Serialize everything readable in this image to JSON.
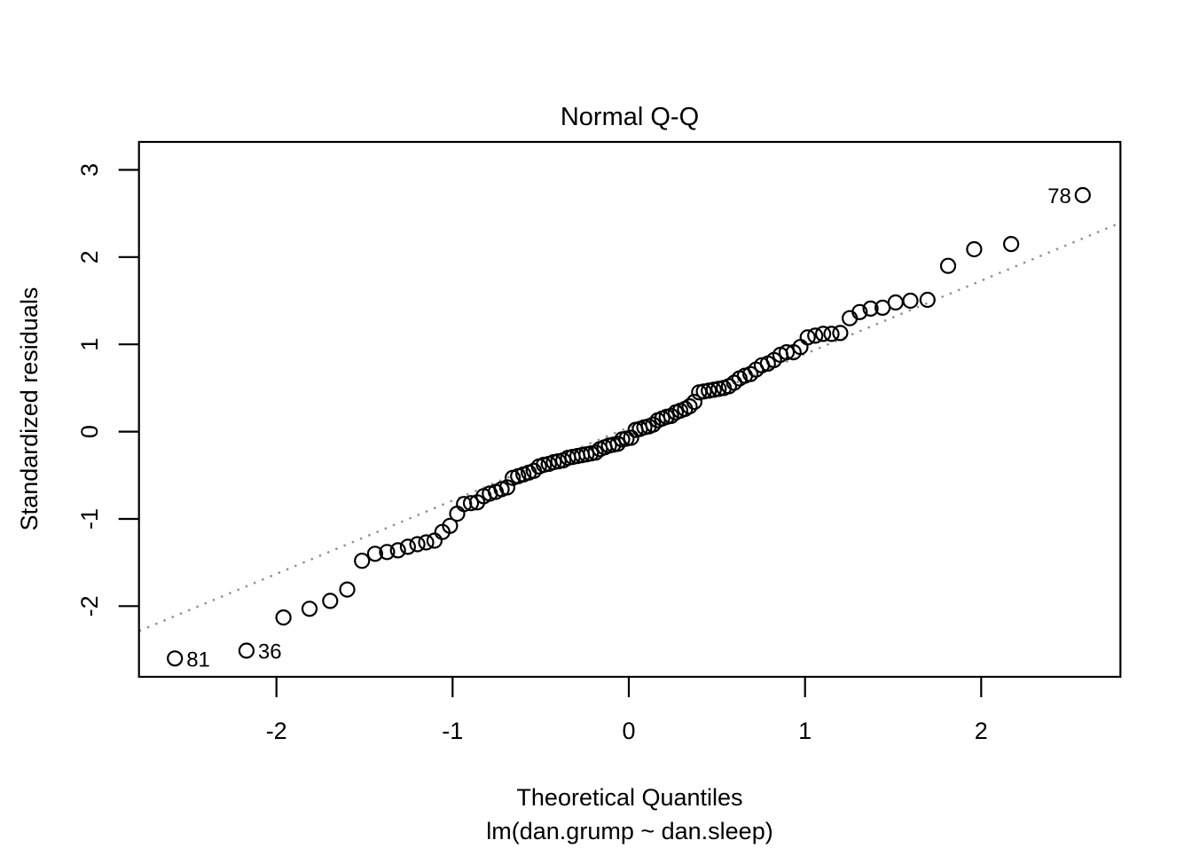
{
  "chart_data": {
    "type": "scatter",
    "title": "Normal Q-Q",
    "xlabel": "Theoretical Quantiles",
    "xlabel2": "lm(dan.grump ~ dan.sleep)",
    "ylabel": "Standardized residuals",
    "xlim": [
      -2.78,
      2.79
    ],
    "ylim": [
      -2.81,
      3.32
    ],
    "xticks": [
      -2,
      -1,
      0,
      1,
      2
    ],
    "yticks": [
      -2,
      -1,
      0,
      1,
      2,
      3
    ],
    "grid": false,
    "legend": "none",
    "point_style": {
      "shape": "open-circle",
      "color": "#000000",
      "radius_px": 8
    },
    "reference_line": {
      "slope": 0.84,
      "intercept": 0.05,
      "style": "dotted",
      "color": "#909090"
    },
    "n_points": 100,
    "theoretical_quantiles": [
      -2.576,
      -2.17,
      -1.96,
      -1.812,
      -1.695,
      -1.598,
      -1.514,
      -1.44,
      -1.372,
      -1.31,
      -1.254,
      -1.2,
      -1.15,
      -1.103,
      -1.058,
      -1.015,
      -0.974,
      -0.935,
      -0.896,
      -0.86,
      -0.824,
      -0.789,
      -0.755,
      -0.722,
      -0.69,
      -0.659,
      -0.628,
      -0.598,
      -0.568,
      -0.539,
      -0.51,
      -0.482,
      -0.454,
      -0.426,
      -0.399,
      -0.372,
      -0.345,
      -0.319,
      -0.292,
      -0.266,
      -0.24,
      -0.215,
      -0.189,
      -0.164,
      -0.138,
      -0.113,
      -0.088,
      -0.063,
      -0.038,
      -0.013,
      0.013,
      0.038,
      0.063,
      0.088,
      0.113,
      0.138,
      0.164,
      0.189,
      0.215,
      0.24,
      0.266,
      0.292,
      0.319,
      0.345,
      0.372,
      0.399,
      0.426,
      0.454,
      0.482,
      0.51,
      0.539,
      0.568,
      0.598,
      0.628,
      0.659,
      0.69,
      0.722,
      0.755,
      0.789,
      0.824,
      0.86,
      0.896,
      0.935,
      0.974,
      1.015,
      1.058,
      1.103,
      1.15,
      1.2,
      1.254,
      1.31,
      1.372,
      1.44,
      1.514,
      1.598,
      1.695,
      1.812,
      1.96,
      2.17,
      2.576
    ],
    "standardized_residuals": [
      -2.6,
      -2.51,
      -2.13,
      -2.03,
      -1.94,
      -1.81,
      -1.48,
      -1.4,
      -1.38,
      -1.36,
      -1.32,
      -1.29,
      -1.27,
      -1.25,
      -1.15,
      -1.08,
      -0.94,
      -0.83,
      -0.82,
      -0.81,
      -0.74,
      -0.71,
      -0.69,
      -0.66,
      -0.64,
      -0.53,
      -0.51,
      -0.49,
      -0.47,
      -0.45,
      -0.4,
      -0.38,
      -0.37,
      -0.35,
      -0.34,
      -0.33,
      -0.3,
      -0.29,
      -0.28,
      -0.27,
      -0.26,
      -0.25,
      -0.24,
      -0.2,
      -0.18,
      -0.16,
      -0.15,
      -0.14,
      -0.09,
      -0.08,
      -0.07,
      0.02,
      0.03,
      0.05,
      0.06,
      0.08,
      0.13,
      0.15,
      0.17,
      0.18,
      0.22,
      0.24,
      0.26,
      0.29,
      0.34,
      0.45,
      0.46,
      0.47,
      0.48,
      0.49,
      0.5,
      0.52,
      0.56,
      0.61,
      0.64,
      0.66,
      0.71,
      0.76,
      0.78,
      0.82,
      0.88,
      0.91,
      0.91,
      0.97,
      1.08,
      1.1,
      1.12,
      1.12,
      1.13,
      1.3,
      1.37,
      1.41,
      1.42,
      1.48,
      1.5,
      1.51,
      1.9,
      2.09,
      2.15,
      2.71
    ],
    "labeled_points": [
      {
        "label": "81",
        "index": 1,
        "side": "right"
      },
      {
        "label": "36",
        "index": 2,
        "side": "right"
      },
      {
        "label": "78",
        "index": 100,
        "side": "left"
      }
    ]
  }
}
